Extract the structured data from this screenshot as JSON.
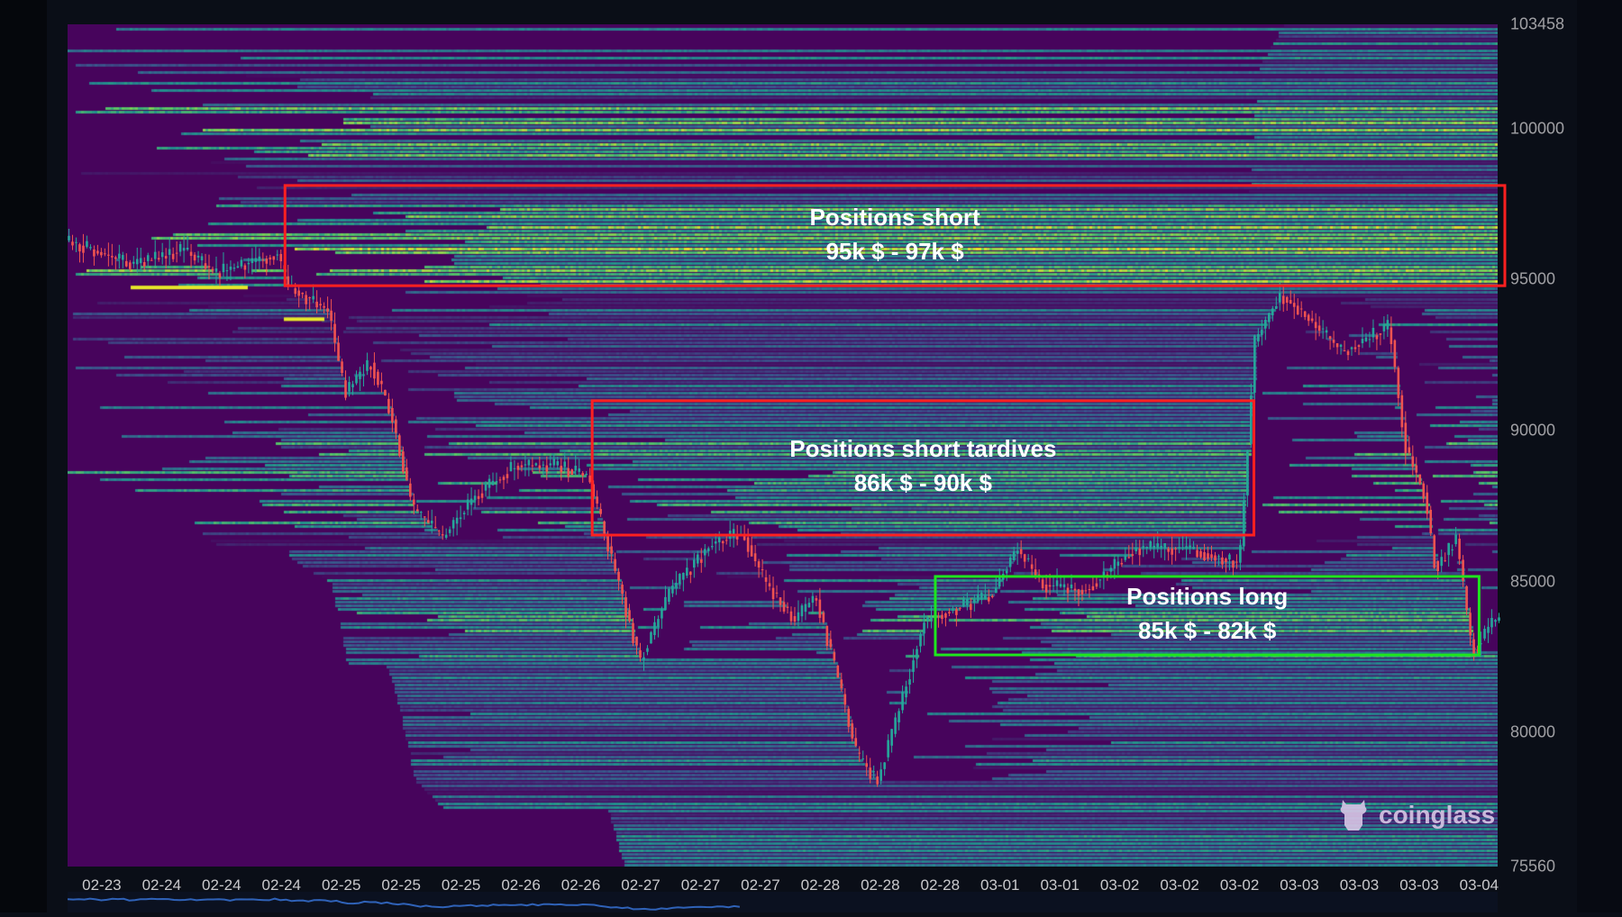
{
  "chart_data": {
    "type": "heatmap",
    "subtype": "liquidation heatmap with candlestick price",
    "x_ticks": [
      "02-23",
      "02-24",
      "02-24",
      "02-24",
      "02-25",
      "02-25",
      "02-25",
      "02-26",
      "02-26",
      "02-27",
      "02-27",
      "02-27",
      "02-28",
      "02-28",
      "02-28",
      "03-01",
      "03-01",
      "03-02",
      "03-02",
      "03-02",
      "03-03",
      "03-03",
      "03-03",
      "03-04"
    ],
    "x_range_tick_index": [
      -0.57,
      23.31
    ],
    "y_ticks": [
      103458,
      100000,
      95000,
      90000,
      85000,
      80000,
      75560
    ],
    "ylim": [
      75560,
      103458
    ],
    "colorscale": [
      "#440154",
      "#31688e",
      "#21908d",
      "#5ec962",
      "#fde725"
    ],
    "price_series": {
      "x_tick_index": [
        -0.57,
        0.55,
        1.42,
        1.93,
        2.97,
        3.14,
        3.83,
        4.09,
        4.53,
        4.87,
        5.22,
        5.73,
        6.25,
        6.94,
        7.63,
        8.15,
        8.5,
        8.84,
        9.02,
        9.53,
        10.22,
        10.74,
        11.09,
        11.61,
        11.95,
        12.3,
        12.64,
        12.99,
        13.33,
        13.77,
        14.2,
        14.89,
        15.32,
        15.75,
        16.44,
        17.31,
        18.17,
        19.03,
        19.29,
        19.72,
        20.07,
        20.76,
        21.54,
        21.8,
        22.14,
        22.31,
        22.66,
        22.92,
        23.26
      ],
      "price": [
        96300,
        95500,
        96000,
        95200,
        95850,
        94800,
        93950,
        91250,
        92250,
        90550,
        87450,
        86450,
        87800,
        88850,
        88850,
        88500,
        86100,
        83700,
        82350,
        84700,
        86250,
        86600,
        85050,
        83700,
        84550,
        82000,
        79250,
        78400,
        80600,
        83700,
        84050,
        84550,
        86100,
        84900,
        84700,
        86100,
        86100,
        85600,
        92950,
        94500,
        93950,
        92600,
        93450,
        89500,
        87800,
        85400,
        86450,
        82650,
        83700
      ],
      "up_color": "#26a69a",
      "down_color": "#ef5350"
    },
    "annotations": [
      {
        "title": "Positions short",
        "range": "95k $ - 97k $",
        "color": "#ff2020",
        "x_tick_index": [
          3.06,
          23.43
        ],
        "price": [
          94800,
          98120
        ]
      },
      {
        "title": "Positions short tardives",
        "range": "86k $ - 90k $",
        "color": "#ff2020",
        "x_tick_index": [
          8.19,
          19.24
        ],
        "price": [
          86540,
          90990
        ]
      },
      {
        "title": "Positions long",
        "range": "85k $ - 82k $",
        "color": "#1ee61e",
        "x_tick_index": [
          13.92,
          23.0
        ],
        "price": [
          82570,
          85170
        ]
      }
    ]
  },
  "watermark": {
    "text": "coinglass",
    "icon": "coinglass-bull-logo"
  }
}
